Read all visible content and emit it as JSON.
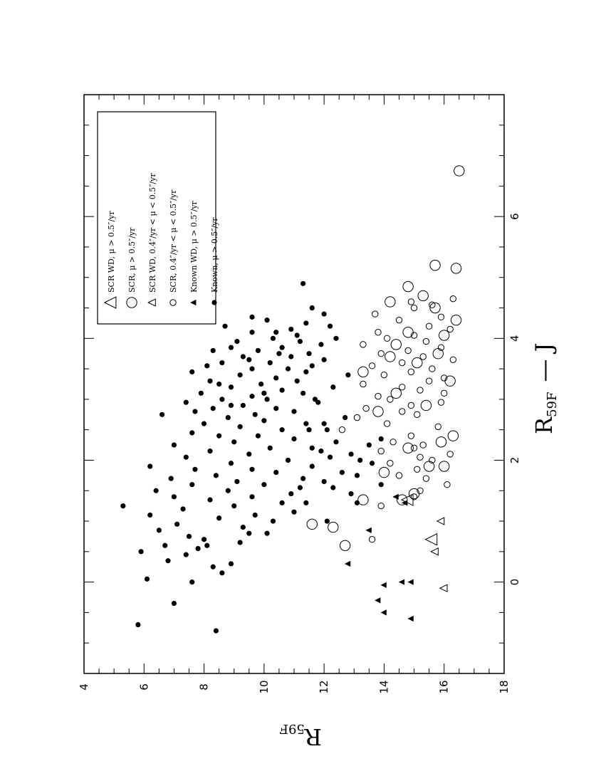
{
  "chart_data": {
    "type": "scatter",
    "orientation": "rotated-90-ccw",
    "xlabel": "R",
    "xlabel_sub": "59F",
    "xlabel_rest": "— J",
    "ylabel": "R",
    "ylabel_sub": "59F",
    "xlim": [
      -1.5,
      8
    ],
    "ylim": [
      4,
      18
    ],
    "y_inverted": true,
    "x_ticks": [
      {
        "value": 0,
        "label": "0"
      },
      {
        "value": 2,
        "label": "2"
      },
      {
        "value": 4,
        "label": "4"
      },
      {
        "value": 6,
        "label": "6"
      }
    ],
    "y_ticks": [
      {
        "value": 4,
        "label": "4"
      },
      {
        "value": 6,
        "label": "6"
      },
      {
        "value": 8,
        "label": "8"
      },
      {
        "value": 10,
        "label": "10"
      },
      {
        "value": 12,
        "label": "12"
      },
      {
        "value": 14,
        "label": "14"
      },
      {
        "value": 16,
        "label": "16"
      },
      {
        "value": 18,
        "label": "18"
      }
    ],
    "legend_placement": "top-left (in rotated frame)",
    "series": [
      {
        "name": "SCR WD, μ > 0.5″/yr",
        "marker": "triangle-open-large",
        "points": [
          [
            0.7,
            15.6
          ],
          [
            1.35,
            14.8
          ]
        ]
      },
      {
        "name": "SCR, μ > 0.5″/yr",
        "marker": "circle-open-large",
        "points": [
          [
            0.6,
            12.7
          ],
          [
            0.9,
            12.3
          ],
          [
            0.95,
            11.6
          ],
          [
            1.35,
            13.3
          ],
          [
            1.35,
            14.6
          ],
          [
            1.45,
            15.0
          ],
          [
            1.8,
            14.0
          ],
          [
            1.9,
            15.5
          ],
          [
            1.9,
            16.0
          ],
          [
            2.2,
            14.8
          ],
          [
            2.3,
            15.9
          ],
          [
            2.4,
            16.3
          ],
          [
            2.8,
            13.8
          ],
          [
            2.9,
            15.4
          ],
          [
            3.1,
            14.4
          ],
          [
            3.3,
            16.2
          ],
          [
            3.45,
            13.3
          ],
          [
            3.6,
            15.1
          ],
          [
            3.7,
            14.2
          ],
          [
            3.75,
            15.8
          ],
          [
            3.9,
            14.4
          ],
          [
            4.05,
            16.0
          ],
          [
            4.1,
            14.8
          ],
          [
            4.3,
            16.4
          ],
          [
            4.5,
            15.7
          ],
          [
            4.6,
            14.2
          ],
          [
            4.7,
            15.3
          ],
          [
            4.85,
            14.8
          ],
          [
            5.15,
            16.4
          ],
          [
            5.2,
            15.7
          ],
          [
            6.75,
            16.5
          ]
        ]
      },
      {
        "name": "SCR WD, 0.4″/yr < μ < 0.5″/yr",
        "marker": "triangle-open-small",
        "points": [
          [
            -0.1,
            16.0
          ],
          [
            0.5,
            15.7
          ],
          [
            1.0,
            15.9
          ]
        ]
      },
      {
        "name": "SCR, 0.4″/yr < μ < 0.5″/yr",
        "marker": "circle-open-small",
        "points": [
          [
            0.7,
            13.6
          ],
          [
            1.25,
            13.9
          ],
          [
            1.4,
            15.0
          ],
          [
            1.5,
            15.2
          ],
          [
            1.6,
            16.1
          ],
          [
            1.7,
            15.4
          ],
          [
            1.75,
            14.5
          ],
          [
            1.85,
            15.1
          ],
          [
            1.95,
            14.2
          ],
          [
            2.0,
            15.6
          ],
          [
            2.05,
            15.2
          ],
          [
            2.1,
            16.2
          ],
          [
            2.15,
            13.9
          ],
          [
            2.2,
            15.0
          ],
          [
            2.25,
            15.3
          ],
          [
            2.3,
            14.3
          ],
          [
            2.4,
            14.9
          ],
          [
            2.5,
            12.6
          ],
          [
            2.55,
            15.8
          ],
          [
            2.6,
            14.1
          ],
          [
            2.7,
            13.1
          ],
          [
            2.75,
            15.1
          ],
          [
            2.8,
            14.6
          ],
          [
            2.85,
            13.4
          ],
          [
            2.9,
            14.9
          ],
          [
            2.95,
            15.9
          ],
          [
            3.0,
            14.2
          ],
          [
            3.05,
            13.8
          ],
          [
            3.1,
            16.0
          ],
          [
            3.15,
            15.2
          ],
          [
            3.2,
            14.6
          ],
          [
            3.25,
            13.3
          ],
          [
            3.3,
            15.5
          ],
          [
            3.35,
            16.0
          ],
          [
            3.4,
            14.0
          ],
          [
            3.45,
            14.9
          ],
          [
            3.5,
            15.6
          ],
          [
            3.55,
            13.6
          ],
          [
            3.6,
            14.6
          ],
          [
            3.65,
            16.3
          ],
          [
            3.7,
            15.3
          ],
          [
            3.75,
            13.9
          ],
          [
            3.8,
            14.8
          ],
          [
            3.85,
            15.9
          ],
          [
            3.9,
            13.3
          ],
          [
            3.95,
            15.4
          ],
          [
            4.0,
            14.1
          ],
          [
            4.05,
            15.0
          ],
          [
            4.1,
            13.8
          ],
          [
            4.15,
            16.2
          ],
          [
            4.2,
            15.5
          ],
          [
            4.3,
            14.5
          ],
          [
            4.35,
            15.9
          ],
          [
            4.4,
            13.7
          ],
          [
            4.5,
            15.0
          ],
          [
            4.55,
            15.6
          ],
          [
            4.65,
            16.3
          ],
          [
            4.6,
            14.9
          ]
        ]
      },
      {
        "name": "Known WD, μ > 0.5″/yr",
        "marker": "triangle-filled",
        "points": [
          [
            -0.6,
            14.9
          ],
          [
            -0.5,
            14.0
          ],
          [
            -0.3,
            13.8
          ],
          [
            -0.05,
            14.0
          ],
          [
            0.0,
            14.6
          ],
          [
            0.0,
            14.9
          ],
          [
            0.3,
            12.8
          ],
          [
            0.85,
            13.5
          ],
          [
            1.3,
            14.7
          ],
          [
            1.4,
            14.4
          ]
        ]
      },
      {
        "name": "Known, μ > 0.5″/yr",
        "marker": "circle-filled",
        "points": [
          [
            -0.7,
            5.8
          ],
          [
            -0.35,
            7.0
          ],
          [
            0.05,
            6.1
          ],
          [
            0.0,
            7.6
          ],
          [
            -0.8,
            8.4
          ],
          [
            0.15,
            8.6
          ],
          [
            0.25,
            8.3
          ],
          [
            0.3,
            8.9
          ],
          [
            0.35,
            6.8
          ],
          [
            0.45,
            7.4
          ],
          [
            0.5,
            5.9
          ],
          [
            0.55,
            7.8
          ],
          [
            0.6,
            8.1
          ],
          [
            0.6,
            6.7
          ],
          [
            0.65,
            9.2
          ],
          [
            0.7,
            8.0
          ],
          [
            0.75,
            7.5
          ],
          [
            0.8,
            9.5
          ],
          [
            0.8,
            10.1
          ],
          [
            0.85,
            6.5
          ],
          [
            0.9,
            9.3
          ],
          [
            0.95,
            7.1
          ],
          [
            1.0,
            10.3
          ],
          [
            1.05,
            8.5
          ],
          [
            1.1,
            6.2
          ],
          [
            1.1,
            9.7
          ],
          [
            1.15,
            11.0
          ],
          [
            1.2,
            7.3
          ],
          [
            1.25,
            5.3
          ],
          [
            1.25,
            9.0
          ],
          [
            1.3,
            10.6
          ],
          [
            1.3,
            11.4
          ],
          [
            1.35,
            8.2
          ],
          [
            1.4,
            7.0
          ],
          [
            1.4,
            9.6
          ],
          [
            1.45,
            10.9
          ],
          [
            1.5,
            6.4
          ],
          [
            1.5,
            8.8
          ],
          [
            1.55,
            11.2
          ],
          [
            1.6,
            7.6
          ],
          [
            1.6,
            10.0
          ],
          [
            1.65,
            9.1
          ],
          [
            1.65,
            12.0
          ],
          [
            1.7,
            6.9
          ],
          [
            1.7,
            11.3
          ],
          [
            1.75,
            8.4
          ],
          [
            1.8,
            10.4
          ],
          [
            1.8,
            12.6
          ],
          [
            1.85,
            7.7
          ],
          [
            1.85,
            9.6
          ],
          [
            1.9,
            6.2
          ],
          [
            1.9,
            11.6
          ],
          [
            1.95,
            8.9
          ],
          [
            2.0,
            10.8
          ],
          [
            2.0,
            13.2
          ],
          [
            2.05,
            7.4
          ],
          [
            2.05,
            12.2
          ],
          [
            2.1,
            9.5
          ],
          [
            2.15,
            8.2
          ],
          [
            2.15,
            11.9
          ],
          [
            2.2,
            10.2
          ],
          [
            2.25,
            7.0
          ],
          [
            2.25,
            13.5
          ],
          [
            2.3,
            9.0
          ],
          [
            2.3,
            12.4
          ],
          [
            2.35,
            11.0
          ],
          [
            2.4,
            8.5
          ],
          [
            2.4,
            9.8
          ],
          [
            2.45,
            7.6
          ],
          [
            2.5,
            10.6
          ],
          [
            2.5,
            12.1
          ],
          [
            2.55,
            9.2
          ],
          [
            2.6,
            8.0
          ],
          [
            2.6,
            11.4
          ],
          [
            2.65,
            10.0
          ],
          [
            2.7,
            8.8
          ],
          [
            2.7,
            12.7
          ],
          [
            2.75,
            6.6
          ],
          [
            2.75,
            9.7
          ],
          [
            2.8,
            11.0
          ],
          [
            2.85,
            8.3
          ],
          [
            2.85,
            10.4
          ],
          [
            2.9,
            9.3
          ],
          [
            2.95,
            7.4
          ],
          [
            2.95,
            11.8
          ],
          [
            3.0,
            10.1
          ],
          [
            3.0,
            8.6
          ],
          [
            3.05,
            9.6
          ],
          [
            3.1,
            11.3
          ],
          [
            3.1,
            7.9
          ],
          [
            3.15,
            10.6
          ],
          [
            3.2,
            8.9
          ],
          [
            3.2,
            12.3
          ],
          [
            3.25,
            9.9
          ],
          [
            3.3,
            11.1
          ],
          [
            3.3,
            8.2
          ],
          [
            3.35,
            10.4
          ],
          [
            3.4,
            9.2
          ],
          [
            3.4,
            12.8
          ],
          [
            3.45,
            7.6
          ],
          [
            3.5,
            10.8
          ],
          [
            3.5,
            9.6
          ],
          [
            3.55,
            11.6
          ],
          [
            3.6,
            8.6
          ],
          [
            3.6,
            10.2
          ],
          [
            3.65,
            12.0
          ],
          [
            3.7,
            9.3
          ],
          [
            3.7,
            10.9
          ],
          [
            3.75,
            11.5
          ],
          [
            3.8,
            8.3
          ],
          [
            3.8,
            9.8
          ],
          [
            3.85,
            10.6
          ],
          [
            3.9,
            11.9
          ],
          [
            3.95,
            9.1
          ],
          [
            4.0,
            10.3
          ],
          [
            4.0,
            12.4
          ],
          [
            4.05,
            11.1
          ],
          [
            4.1,
            9.6
          ],
          [
            4.15,
            10.9
          ],
          [
            4.2,
            8.7
          ],
          [
            4.25,
            11.4
          ],
          [
            4.3,
            10.1
          ],
          [
            4.4,
            12.0
          ],
          [
            4.5,
            11.6
          ],
          [
            4.9,
            11.3
          ],
          [
            2.5,
            11.5
          ],
          [
            2.6,
            12.0
          ],
          [
            1.95,
            13.6
          ],
          [
            2.1,
            12.9
          ],
          [
            2.35,
            13.9
          ],
          [
            2.2,
            11.6
          ],
          [
            1.45,
            12.9
          ],
          [
            1.3,
            13.1
          ],
          [
            1.6,
            13.9
          ],
          [
            1.75,
            13.1
          ],
          [
            1.55,
            12.3
          ],
          [
            1.0,
            12.1
          ],
          [
            2.8,
            7.7
          ],
          [
            2.9,
            8.9
          ],
          [
            3.0,
            11.7
          ],
          [
            3.1,
            10.0
          ],
          [
            3.25,
            8.5
          ],
          [
            3.45,
            11.4
          ],
          [
            3.55,
            8.1
          ],
          [
            3.65,
            9.5
          ],
          [
            3.75,
            10.5
          ],
          [
            3.85,
            8.9
          ],
          [
            3.95,
            11.2
          ],
          [
            4.1,
            10.4
          ],
          [
            4.2,
            12.2
          ],
          [
            4.35,
            9.6
          ]
        ]
      }
    ]
  }
}
